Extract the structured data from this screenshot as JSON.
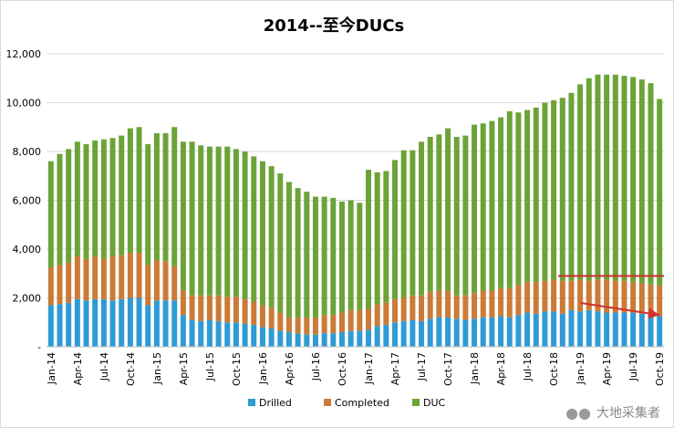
{
  "chart_data": {
    "type": "bar",
    "stacked": true,
    "title": "2014--至今DUCs",
    "xlabel": "",
    "ylabel": "",
    "ylim": [
      0,
      12000
    ],
    "yticks": [
      "-",
      "2,000",
      "4,000",
      "6,000",
      "8,000",
      "10,000",
      "12,000"
    ],
    "x_tick_labels": [
      "Jan-14",
      "Apr-14",
      "Jul-14",
      "Oct-14",
      "Jan-15",
      "Apr-15",
      "Jul-15",
      "Oct-15",
      "Jan-16",
      "Apr-16",
      "Jul-16",
      "Oct-16",
      "Jan-17",
      "Apr-17",
      "Jul-17",
      "Oct-17",
      "Jan-18",
      "Apr-18",
      "Jul-18",
      "Oct-18",
      "Jan-19",
      "Apr-19",
      "Jul-19",
      "Oct-19"
    ],
    "grid": "horizontal",
    "legend_position": "bottom",
    "categories": [
      "Jan-14",
      "Feb-14",
      "Mar-14",
      "Apr-14",
      "May-14",
      "Jun-14",
      "Jul-14",
      "Aug-14",
      "Sep-14",
      "Oct-14",
      "Nov-14",
      "Dec-14",
      "Jan-15",
      "Feb-15",
      "Mar-15",
      "Apr-15",
      "May-15",
      "Jun-15",
      "Jul-15",
      "Aug-15",
      "Sep-15",
      "Oct-15",
      "Nov-15",
      "Dec-15",
      "Jan-16",
      "Feb-16",
      "Mar-16",
      "Apr-16",
      "May-16",
      "Jun-16",
      "Jul-16",
      "Aug-16",
      "Sep-16",
      "Oct-16",
      "Nov-16",
      "Dec-16",
      "Jan-17",
      "Feb-17",
      "Mar-17",
      "Apr-17",
      "May-17",
      "Jun-17",
      "Jul-17",
      "Aug-17",
      "Sep-17",
      "Oct-17",
      "Nov-17",
      "Dec-17",
      "Jan-18",
      "Feb-18",
      "Mar-18",
      "Apr-18",
      "May-18",
      "Jun-18",
      "Jul-18",
      "Aug-18",
      "Sep-18",
      "Oct-18",
      "Nov-18",
      "Dec-18",
      "Jan-19",
      "Feb-19",
      "Mar-19",
      "Apr-19",
      "May-19",
      "Jun-19",
      "Jul-19",
      "Aug-19",
      "Sep-19",
      "Oct-19"
    ],
    "series": [
      {
        "name": "Drilled",
        "color": "#2e9bd6",
        "values": [
          1700,
          1750,
          1800,
          1950,
          1900,
          1950,
          1950,
          1900,
          1950,
          2000,
          2000,
          1700,
          1900,
          1900,
          1900,
          1300,
          1100,
          1050,
          1100,
          1050,
          1000,
          1000,
          950,
          900,
          800,
          750,
          650,
          600,
          550,
          500,
          500,
          550,
          550,
          600,
          650,
          650,
          700,
          850,
          900,
          1000,
          1050,
          1100,
          1050,
          1150,
          1200,
          1200,
          1150,
          1100,
          1150,
          1200,
          1200,
          1250,
          1200,
          1300,
          1400,
          1350,
          1450,
          1450,
          1350,
          1500,
          1450,
          1500,
          1450,
          1400,
          1400,
          1400,
          1400,
          1350,
          1300,
          1250
        ]
      },
      {
        "name": "Completed",
        "color": "#cc7a35",
        "values": [
          1550,
          1600,
          1650,
          1750,
          1700,
          1750,
          1650,
          1800,
          1800,
          1850,
          1850,
          1650,
          1650,
          1600,
          1400,
          1000,
          1000,
          1050,
          1000,
          1050,
          1050,
          1050,
          1000,
          950,
          900,
          850,
          750,
          600,
          650,
          700,
          700,
          750,
          750,
          800,
          850,
          850,
          850,
          900,
          900,
          950,
          950,
          1000,
          1050,
          1100,
          1100,
          1100,
          950,
          1000,
          1050,
          1100,
          1100,
          1150,
          1200,
          1250,
          1250,
          1300,
          1250,
          1300,
          1350,
          1200,
          1300,
          1200,
          1300,
          1350,
          1300,
          1300,
          1250,
          1250,
          1250,
          1250
        ]
      },
      {
        "name": "DUC",
        "color": "#6ca338",
        "values": [
          4350,
          4550,
          4650,
          4700,
          4700,
          4750,
          4900,
          4850,
          4900,
          5100,
          5150,
          4950,
          5200,
          5250,
          5700,
          6100,
          6300,
          6150,
          6100,
          6100,
          6150,
          6050,
          6050,
          5950,
          5900,
          5800,
          5700,
          5550,
          5300,
          5150,
          4950,
          4850,
          4800,
          4550,
          4500,
          4400,
          5700,
          5400,
          5400,
          5700,
          6050,
          5950,
          6300,
          6350,
          6400,
          6650,
          6500,
          6550,
          6900,
          6850,
          6950,
          7000,
          7250,
          7050,
          7050,
          7150,
          7300,
          7350,
          7500,
          7700,
          8000,
          8300,
          8400,
          8400,
          8450,
          8400,
          8400,
          8350,
          8250,
          7650
        ]
      }
    ],
    "annotations": [
      {
        "kind": "horizontal-line",
        "color": "#cc3333",
        "from": "Nov-18",
        "to": "Oct-19",
        "y": 2900
      },
      {
        "kind": "arrow",
        "color": "#cc3333",
        "from": [
          "Jan-19",
          1800
        ],
        "to": [
          "Oct-19",
          1300
        ]
      }
    ]
  },
  "watermark": {
    "icon": "wechat-icon",
    "text": "大地采集者"
  }
}
